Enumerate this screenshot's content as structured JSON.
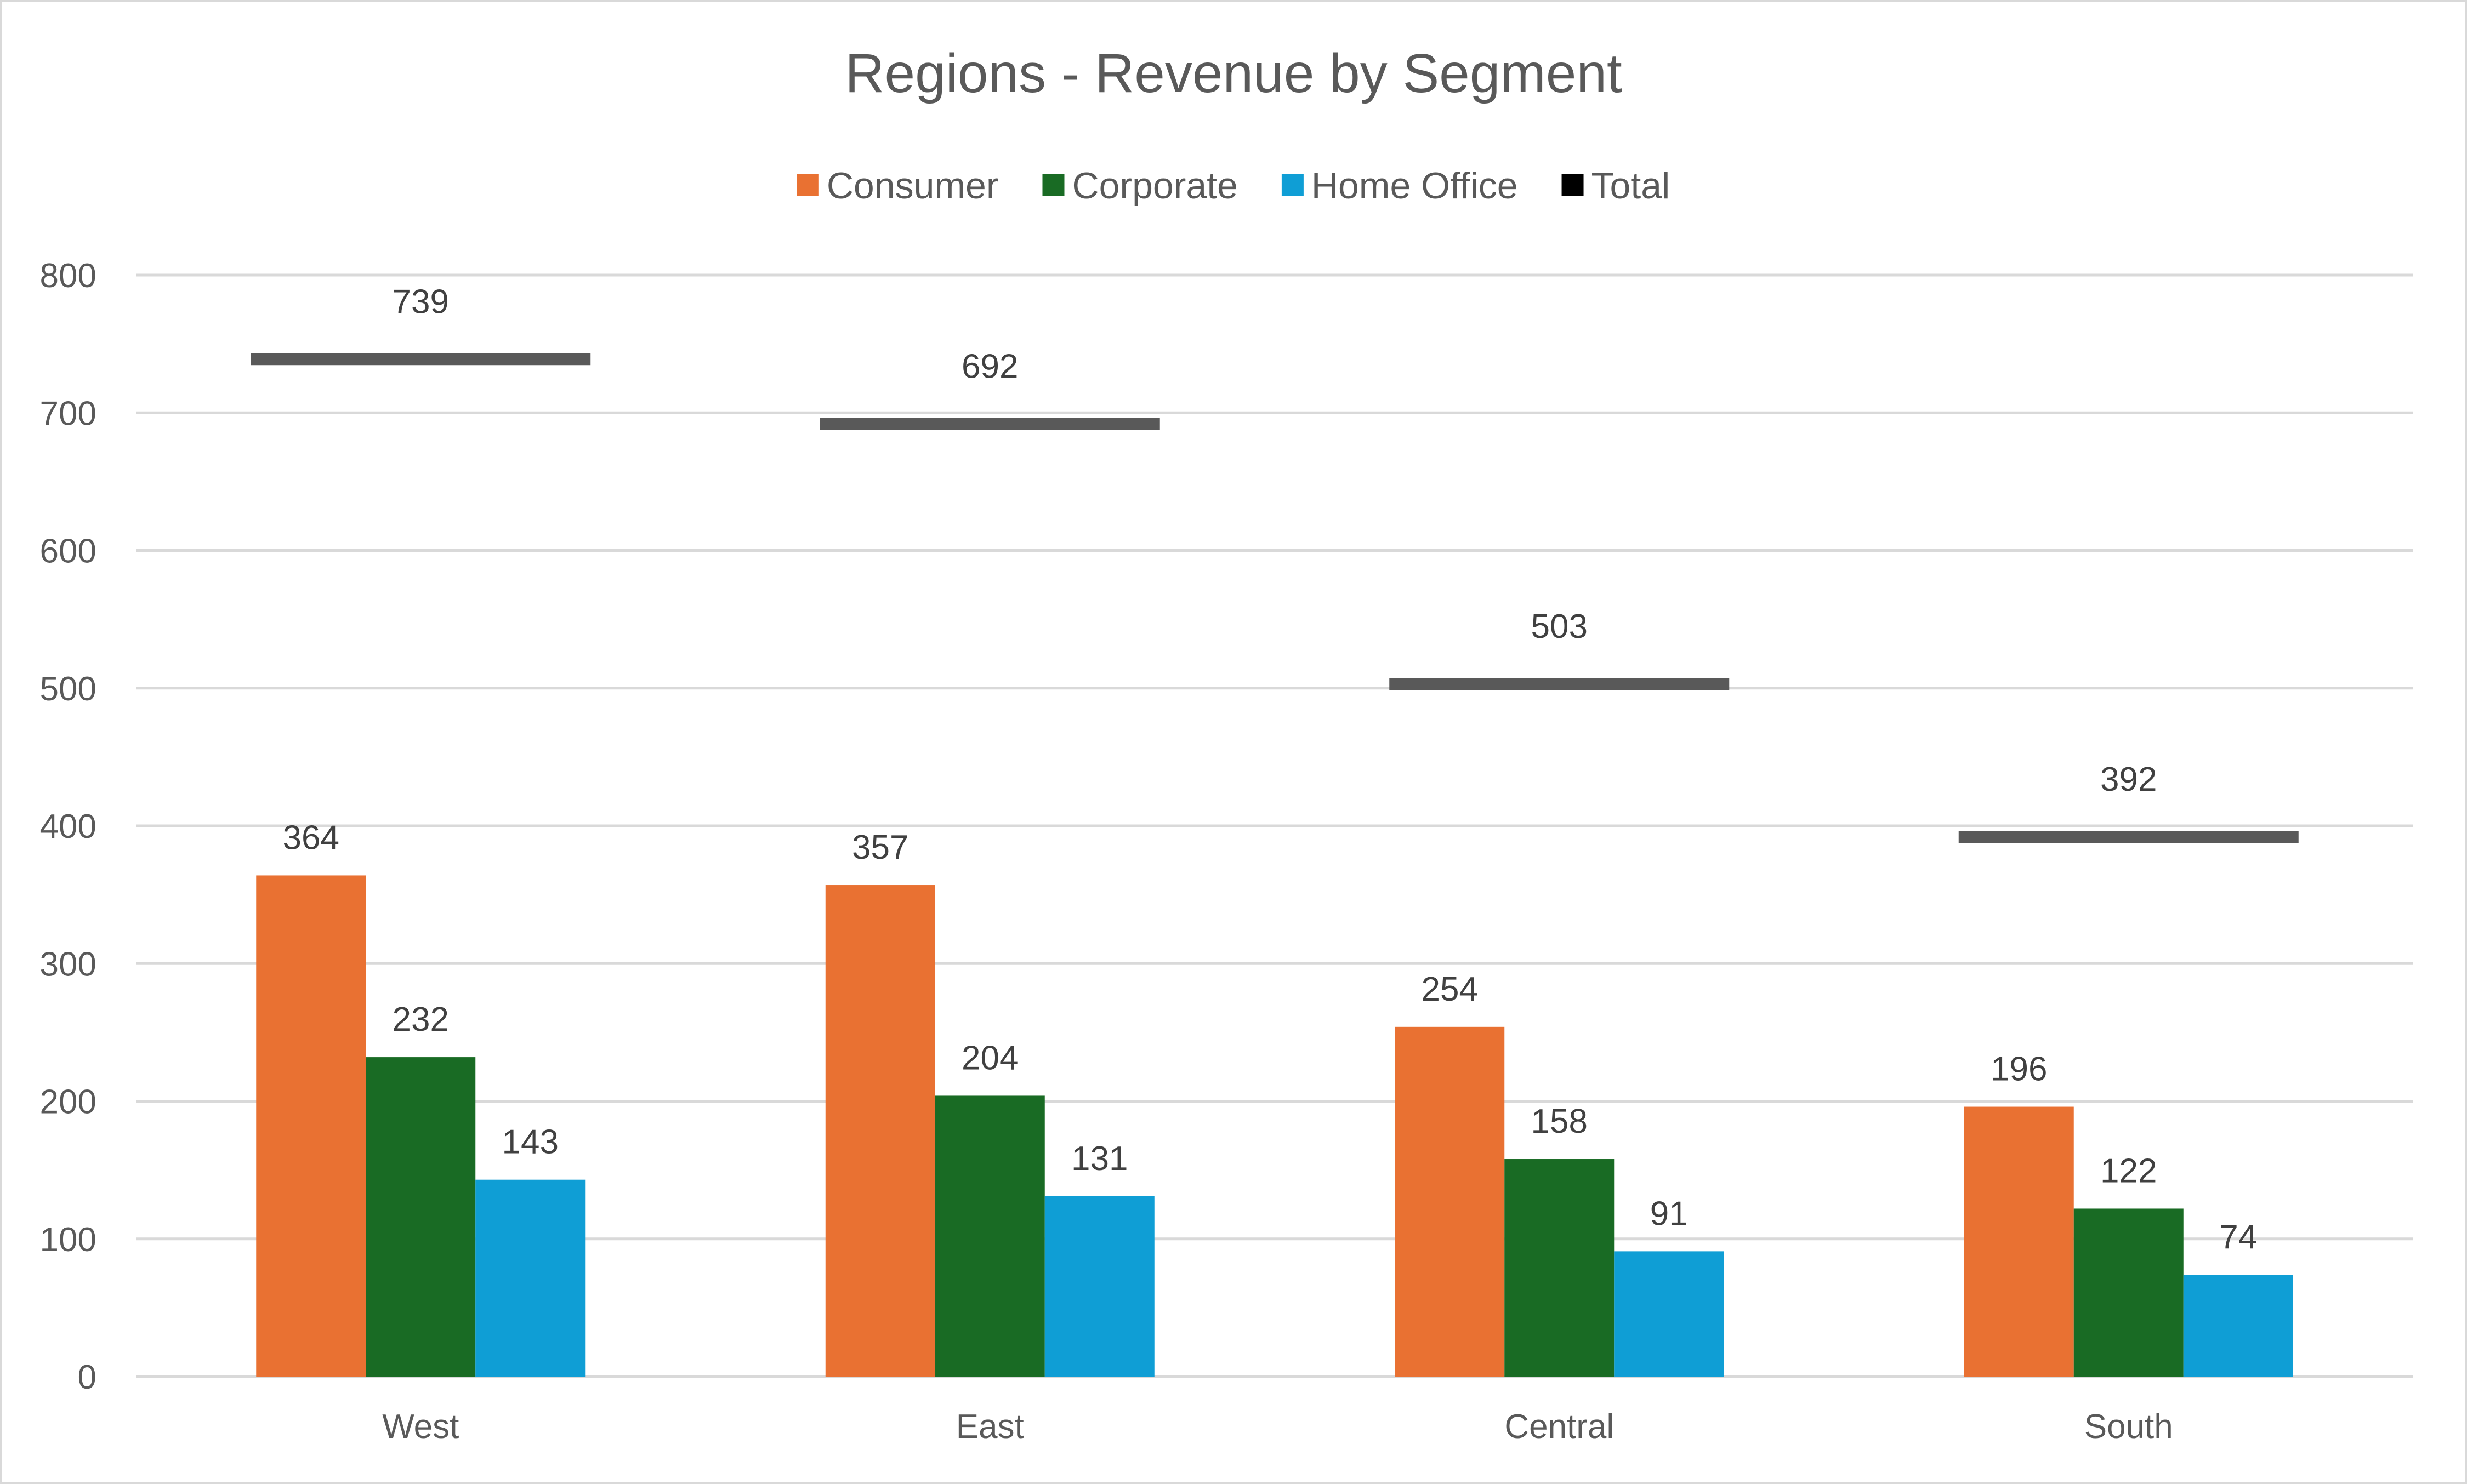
{
  "chart_data": {
    "type": "bar",
    "title": "Regions - Revenue by Segment",
    "xlabel": "",
    "ylabel": "",
    "categories": [
      "West",
      "East",
      "Central",
      "South"
    ],
    "series": [
      {
        "name": "Consumer",
        "color": "#e97132",
        "values": [
          364,
          357,
          254,
          196
        ]
      },
      {
        "name": "Corporate",
        "color": "#196b24",
        "values": [
          232,
          204,
          158,
          122
        ]
      },
      {
        "name": "Home Office",
        "color": "#0f9ed5",
        "values": [
          143,
          131,
          91,
          74
        ]
      }
    ],
    "total": {
      "name": "Total",
      "color": "#595959",
      "legend_color": "#000000",
      "values": [
        739,
        692,
        503,
        392
      ]
    },
    "y_ticks": [
      "0",
      "100",
      "200",
      "300",
      "400",
      "500",
      "600",
      "700",
      "800"
    ],
    "ylim": [
      0,
      800
    ],
    "grid": true,
    "legend_position": "top-center",
    "data_labels": true
  }
}
